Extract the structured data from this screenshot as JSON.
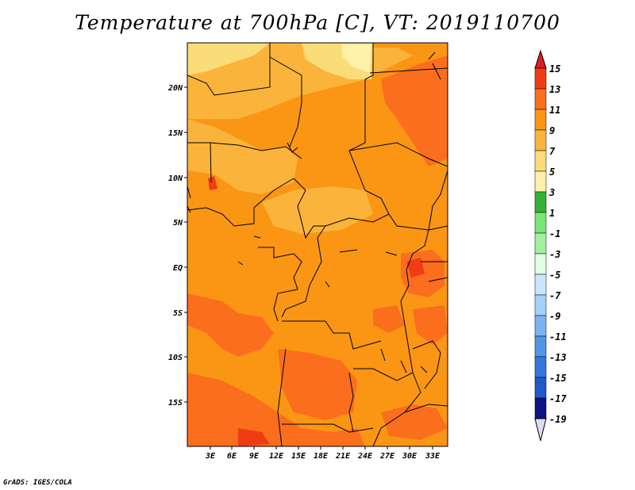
{
  "title": "Temperature at 700hPa [C], VT: 2019110700",
  "credit": "GrADS: IGES/COLA",
  "map": {
    "lon_labels": [
      "3E",
      "6E",
      "9E",
      "12E",
      "15E",
      "18E",
      "21E",
      "24E",
      "27E",
      "30E",
      "33E"
    ],
    "lat_labels": [
      "20N",
      "15N",
      "10N",
      "5N",
      "EQ",
      "5S",
      "10S",
      "15S"
    ]
  },
  "colorbar": {
    "levels": [
      "15",
      "13",
      "11",
      "9",
      "7",
      "5",
      "3",
      "1",
      "-1",
      "-3",
      "-5",
      "-7",
      "-9",
      "-11",
      "-13",
      "-15",
      "-17",
      "-19"
    ],
    "colors": {
      "above_15": "#dc1e1e",
      "13_15": "#f03c14",
      "11_13": "#fa6e1e",
      "9_11": "#fa9614",
      "7_9": "#fab43c",
      "5_7": "#fadc78",
      "3_5": "#fff0aa",
      "1_3": "#32b432",
      "-1_1": "#78e678",
      "-3_-1": "#a0f0a0",
      "-5_-3": "#e1ffe1",
      "-7_-5": "#c8e6ff",
      "-9_-7": "#a0d2fa",
      "-11_-9": "#78b4f0",
      "-13_-11": "#5096e6",
      "-15_-13": "#3278dc",
      "-17_-15": "#1e5ac8",
      "-19_-17": "#143cb4",
      "below_-19": "#0a1482",
      "below_arrow": "#dcdcf5"
    }
  }
}
